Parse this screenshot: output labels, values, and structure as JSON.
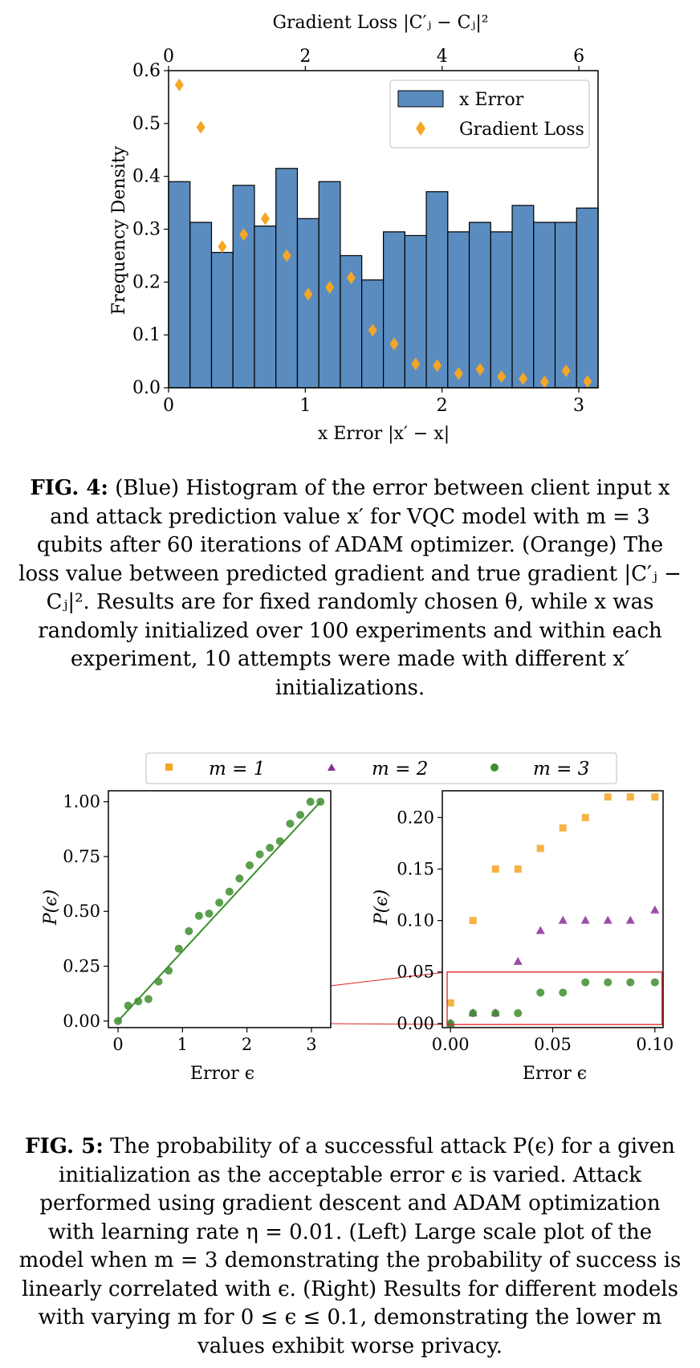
{
  "fig4": {
    "top_axis_label": "Gradient Loss |C′ⱼ − Cⱼ|²",
    "bottom_axis_label": "x Error |x′ − x|",
    "y_axis_label": "Frequency Density",
    "legend": {
      "hist": "x Error",
      "scatter": "Gradient Loss"
    },
    "caption": {
      "label": "FIG. 4:",
      "text": " (Blue) Histogram of the error between client input x and attack prediction value x′ for VQC model with m = 3 qubits after 60 iterations of ADAM optimizer. (Orange) The loss value between predicted gradient and true gradient |C′ⱼ − Cⱼ|². Results are for fixed randomly chosen θ, while x was randomly initialized over 100 experiments and within each experiment, 10 attempts were made with different x′ initializations."
    }
  },
  "fig5": {
    "legend": [
      "m = 1",
      "m = 2",
      "m = 3"
    ],
    "left_xlabel": "Error ϵ",
    "left_ylabel": "P(ϵ)",
    "right_xlabel": "Error ϵ",
    "right_ylabel": "P(ϵ)",
    "caption": {
      "label": "FIG. 5:",
      "text": " The probability of a successful attack P(ϵ) for a given initialization as the acceptable error ϵ is varied. Attack performed using gradient descent and ADAM optimization with learning rate η = 0.01. (Left) Large scale plot of the model when m = 3 demonstrating the probability of success is linearly correlated with ϵ. (Right) Results for different models with varying m for 0 ≤ ϵ ≤ 0.1, demonstrating the lower m values exhibit worse privacy."
    }
  },
  "chart_data": [
    {
      "type": "bar",
      "series_type": "histogram",
      "bin_edges": [
        0,
        0.157,
        0.314,
        0.471,
        0.628,
        0.785,
        0.942,
        1.099,
        1.256,
        1.413,
        1.571,
        1.728,
        1.885,
        2.042,
        2.199,
        2.356,
        2.513,
        2.67,
        2.827,
        2.984,
        3.141
      ],
      "values": [
        0.39,
        0.313,
        0.256,
        0.383,
        0.306,
        0.415,
        0.32,
        0.39,
        0.25,
        0.204,
        0.295,
        0.288,
        0.371,
        0.295,
        0.313,
        0.295,
        0.345,
        0.313,
        0.313,
        0.34
      ],
      "bottom_xlim": [
        0,
        3.141
      ],
      "bottom_xticks": [
        0,
        1,
        2,
        3
      ],
      "ylim": [
        0,
        0.6
      ],
      "yticks": [
        0.0,
        0.1,
        0.2,
        0.3,
        0.4,
        0.5,
        0.6
      ],
      "top_xlim": [
        0,
        6.28
      ],
      "top_xticks": [
        0,
        2,
        4,
        6
      ],
      "scatter": {
        "x": [
          0.157,
          0.471,
          0.785,
          1.099,
          1.413,
          1.728,
          2.042,
          2.356,
          2.67,
          2.984,
          3.298,
          3.613,
          3.927,
          4.241,
          4.555,
          4.869,
          5.184,
          5.498,
          5.812,
          6.126
        ],
        "y": [
          0.573,
          0.493,
          0.267,
          0.29,
          0.32,
          0.25,
          0.177,
          0.19,
          0.208,
          0.109,
          0.083,
          0.045,
          0.042,
          0.027,
          0.035,
          0.021,
          0.017,
          0.011,
          0.032,
          0.012
        ]
      },
      "colors": {
        "hist": "#5b8cc0",
        "scatter": "#f5a623"
      },
      "legend_position": "upper-right"
    },
    {
      "type": "scatter",
      "x": [
        0,
        0.157,
        0.314,
        0.471,
        0.628,
        0.785,
        0.942,
        1.099,
        1.256,
        1.413,
        1.571,
        1.728,
        1.885,
        2.042,
        2.199,
        2.356,
        2.513,
        2.67,
        2.827,
        2.984,
        3.141
      ],
      "series": [
        {
          "name": "m = 3",
          "values": [
            0,
            0.07,
            0.09,
            0.1,
            0.18,
            0.23,
            0.33,
            0.41,
            0.48,
            0.49,
            0.54,
            0.59,
            0.65,
            0.71,
            0.76,
            0.79,
            0.82,
            0.9,
            0.94,
            1.0,
            1.0
          ]
        }
      ],
      "fit_line": {
        "x": [
          0,
          3.141
        ],
        "y": [
          0,
          1.0
        ]
      },
      "xlim": [
        -0.15,
        3.3
      ],
      "xticks": [
        0,
        1,
        2,
        3
      ],
      "ylim": [
        -0.03,
        1.05
      ],
      "yticks": [
        "0.00",
        "0.25",
        "0.50",
        "0.75",
        "1.00"
      ],
      "colors": {
        "m3": "#3e8e2e"
      }
    },
    {
      "type": "scatter",
      "x": [
        0,
        0.011,
        0.022,
        0.033,
        0.044,
        0.055,
        0.066,
        0.077,
        0.088,
        0.1
      ],
      "series": [
        {
          "name": "m = 1",
          "values": [
            0.02,
            0.1,
            0.15,
            0.15,
            0.17,
            0.19,
            0.2,
            0.22,
            0.22,
            0.22
          ]
        },
        {
          "name": "m = 2",
          "values": [
            0.0,
            0.01,
            0.01,
            0.06,
            0.09,
            0.1,
            0.1,
            0.1,
            0.1,
            0.11
          ]
        },
        {
          "name": "m = 3",
          "values": [
            0.0,
            0.01,
            0.01,
            0.01,
            0.03,
            0.03,
            0.04,
            0.04,
            0.04,
            0.04
          ]
        }
      ],
      "xlim": [
        -0.004,
        0.104
      ],
      "xticks": [
        "0.00",
        "0.05",
        "0.10"
      ],
      "ylim": [
        -0.004,
        0.226
      ],
      "yticks": [
        "0.00",
        "0.05",
        "0.10",
        "0.15",
        "0.20"
      ],
      "colors": {
        "m1": "#f5a623",
        "m2": "#8b2d9a",
        "m3": "#3e8e2e",
        "zoom": "#e02020"
      },
      "legend_position": "top"
    }
  ]
}
